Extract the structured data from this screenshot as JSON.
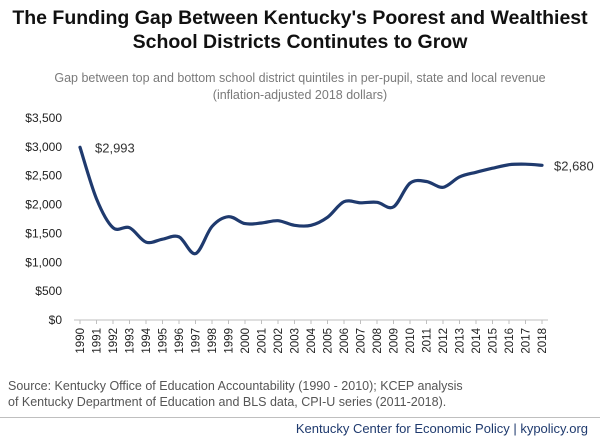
{
  "chart_data": {
    "type": "line",
    "title_line1": "The Funding Gap Between Kentucky's Poorest and Wealthiest",
    "title_line2": "School Districts Continutes to Grow",
    "subtitle_line1": "Gap between top and bottom school district quintiles in per-pupil, state and local revenue",
    "subtitle_line2": "(inflation-adjusted 2018 dollars)",
    "x": [
      1990,
      1991,
      1992,
      1993,
      1994,
      1995,
      1996,
      1997,
      1998,
      1999,
      2000,
      2001,
      2002,
      2003,
      2004,
      2005,
      2006,
      2007,
      2008,
      2009,
      2010,
      2011,
      2012,
      2013,
      2014,
      2015,
      2016,
      2017,
      2018
    ],
    "x_tick_labels": [
      "1990",
      "1991",
      "1992",
      "1993",
      "1994",
      "1995",
      "1996",
      "1997",
      "1998",
      "1999",
      "2000",
      "2001",
      "2002",
      "2003",
      "2004",
      "2005",
      "2006",
      "2007",
      "2008",
      "2009",
      "2010",
      "2011",
      "2012",
      "2013",
      "2014",
      "2015",
      "2016",
      "2017",
      "2018"
    ],
    "series": [
      {
        "values": [
          2993,
          2100,
          1600,
          1600,
          1350,
          1400,
          1440,
          1150,
          1620,
          1790,
          1670,
          1680,
          1720,
          1640,
          1640,
          1780,
          2050,
          2030,
          2040,
          1960,
          2370,
          2400,
          2300,
          2480,
          2560,
          2630,
          2690,
          2700,
          2680
        ],
        "color": "#1f3a6e"
      }
    ],
    "ylim": [
      0,
      3500
    ],
    "y_ticks": [
      0,
      500,
      1000,
      1500,
      2000,
      2500,
      3000,
      3500
    ],
    "y_tick_labels": [
      "$0",
      "$500",
      "$1,000",
      "$1,500",
      "$2,000",
      "$2,500",
      "$3,000",
      "$3,500"
    ],
    "annotations": [
      {
        "label": "$2,993",
        "x": 1990,
        "value": 2993
      },
      {
        "label": "$2,680",
        "x": 2018,
        "value": 2680
      }
    ],
    "grid": false,
    "xlabel": "",
    "ylabel": ""
  },
  "source_line1": "Source: Kentucky Office of Education Accountability (1990 - 2010); KCEP analysis",
  "source_line2": "of Kentucky Department of Education and BLS data, CPI-U series (2011-2018).",
  "footer": "Kentucky Center for Economic Policy | kypolicy.org",
  "colors": {
    "line": "#1f3a6e",
    "axis": "#bfbfbf",
    "footer": "#1f3a6e"
  }
}
